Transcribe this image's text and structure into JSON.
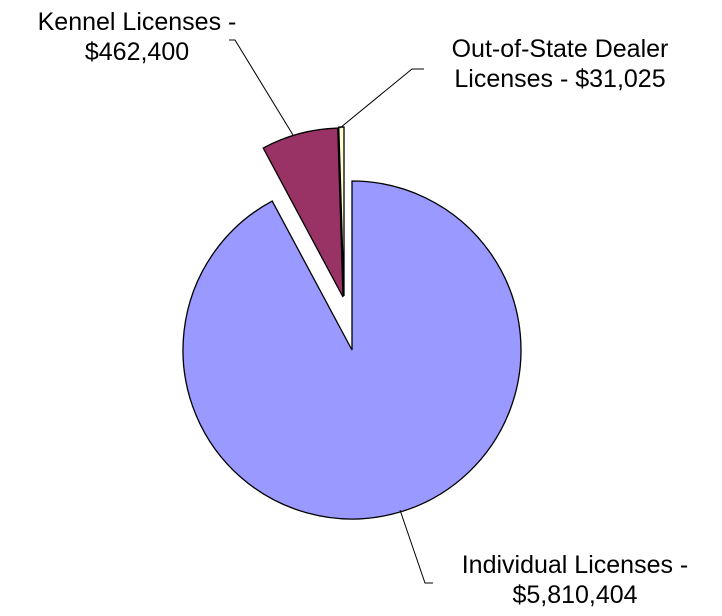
{
  "chart_data": {
    "type": "pie",
    "title": "",
    "slices": [
      {
        "name": "Individual Licenses",
        "value": 5810404,
        "label_lines": [
          "Individual Licenses -",
          "$5,810,404"
        ],
        "color": "#9999FF"
      },
      {
        "name": "Kennel Licenses",
        "value": 462400,
        "label_lines": [
          "Kennel Licenses -",
          "$462,400"
        ],
        "color": "#993366"
      },
      {
        "name": "Out-of-State Dealer Licenses",
        "value": 31025,
        "label_lines": [
          "Out-of-State Dealer",
          "Licenses - $31,025"
        ],
        "color": "#FFFFCC"
      }
    ],
    "start_angle": "12 o'clock, clockwise",
    "exploded": true,
    "legend": "none"
  }
}
